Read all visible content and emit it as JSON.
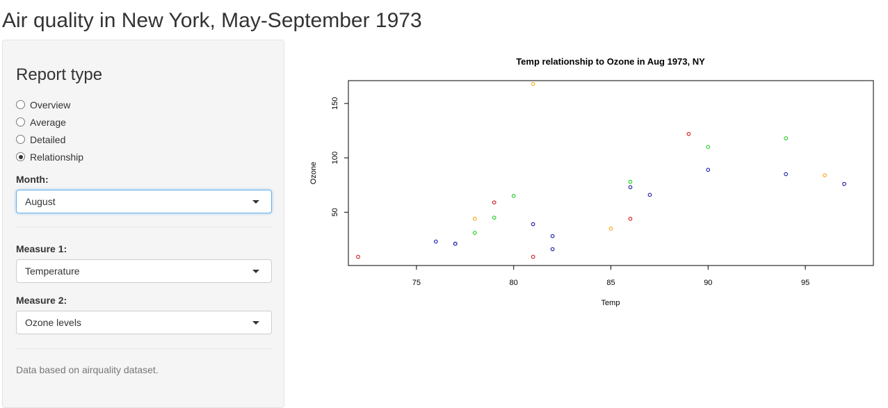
{
  "app": {
    "title": "Air quality in New York, May-September 1973"
  },
  "sidebar": {
    "report_type_title": "Report type",
    "report_options": [
      {
        "label": "Overview",
        "checked": false
      },
      {
        "label": "Average",
        "checked": false
      },
      {
        "label": "Detailed",
        "checked": false
      },
      {
        "label": "Relationship",
        "checked": true
      }
    ],
    "month": {
      "label": "Month:",
      "value": "August"
    },
    "measure1": {
      "label": "Measure 1:",
      "value": "Temperature"
    },
    "measure2": {
      "label": "Measure 2:",
      "value": "Ozone levels"
    },
    "footnote": "Data based on airquality dataset."
  },
  "chart_data": {
    "type": "scatter",
    "title": "Temp  relationship to  Ozone  in Aug 1973, NY",
    "xlabel": "Temp",
    "ylabel": "Ozone",
    "xlim": [
      71.5,
      98.5
    ],
    "ylim": [
      1,
      171
    ],
    "x_ticks": [
      75,
      80,
      85,
      90,
      95
    ],
    "y_ticks": [
      50,
      100,
      150
    ],
    "grid": false,
    "points": [
      {
        "x": 72,
        "y": 9,
        "color": "#cc0000"
      },
      {
        "x": 76,
        "y": 23,
        "color": "#000099"
      },
      {
        "x": 77,
        "y": 21,
        "color": "#000099"
      },
      {
        "x": 77,
        "y": 21,
        "color": "#000099"
      },
      {
        "x": 78,
        "y": 44,
        "color": "#ff9900"
      },
      {
        "x": 78,
        "y": 31,
        "color": "#00cc00"
      },
      {
        "x": 79,
        "y": 59,
        "color": "#cc0000"
      },
      {
        "x": 79,
        "y": 45,
        "color": "#00cc00"
      },
      {
        "x": 80,
        "y": 65,
        "color": "#00cc00"
      },
      {
        "x": 81,
        "y": 168,
        "color": "#ff9900"
      },
      {
        "x": 81,
        "y": 39,
        "color": "#000099"
      },
      {
        "x": 81,
        "y": 9,
        "color": "#cc0000"
      },
      {
        "x": 82,
        "y": 28,
        "color": "#000099"
      },
      {
        "x": 82,
        "y": 16,
        "color": "#000099"
      },
      {
        "x": 85,
        "y": 35,
        "color": "#ff9900"
      },
      {
        "x": 86,
        "y": 78,
        "color": "#00cc00"
      },
      {
        "x": 86,
        "y": 73,
        "color": "#000099"
      },
      {
        "x": 86,
        "y": 44,
        "color": "#cc0000"
      },
      {
        "x": 87,
        "y": 66,
        "color": "#000099"
      },
      {
        "x": 89,
        "y": 122,
        "color": "#cc0000"
      },
      {
        "x": 90,
        "y": 110,
        "color": "#00cc00"
      },
      {
        "x": 90,
        "y": 89,
        "color": "#000099"
      },
      {
        "x": 94,
        "y": 118,
        "color": "#00cc00"
      },
      {
        "x": 94,
        "y": 85,
        "color": "#000099"
      },
      {
        "x": 96,
        "y": 84,
        "color": "#ff9900"
      },
      {
        "x": 97,
        "y": 76,
        "color": "#000099"
      }
    ]
  }
}
